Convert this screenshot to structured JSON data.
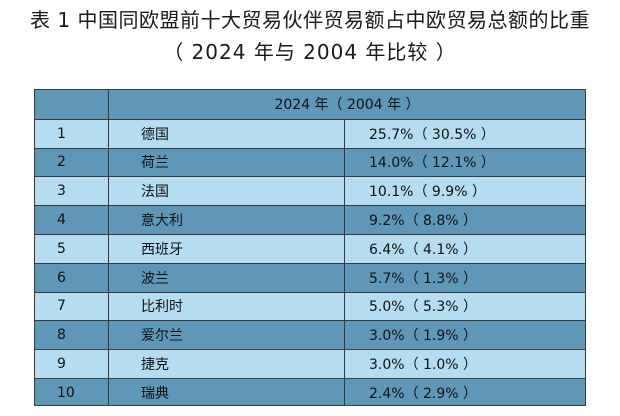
{
  "title": "表 1 中国同欧盟前十大贸易伙伴贸易额占中欧贸易总额的比重",
  "subtitle": "（ 2024 年与 2004 年比较 ）",
  "table": {
    "header": "2024 年（ 2004 年 ）",
    "rows": [
      {
        "rank": "1",
        "country": "德国",
        "share": "25.7%（ 30.5% ）"
      },
      {
        "rank": "2",
        "country": "荷兰",
        "share": "14.0%（ 12.1% ）"
      },
      {
        "rank": "3",
        "country": "法国",
        "share": "10.1%（ 9.9% ）"
      },
      {
        "rank": "4",
        "country": "意大利",
        "share": "9.2%（ 8.8% ）"
      },
      {
        "rank": "5",
        "country": "西班牙",
        "share": "6.4%（ 4.1% ）"
      },
      {
        "rank": "6",
        "country": "波兰",
        "share": "5.7%（ 1.3% ）"
      },
      {
        "rank": "7",
        "country": "比利时",
        "share": "5.0%（ 5.3% ）"
      },
      {
        "rank": "8",
        "country": "爱尔兰",
        "share": "3.0%（ 1.9% ）"
      },
      {
        "rank": "9",
        "country": "捷克",
        "share": "3.0%（ 1.0% ）"
      },
      {
        "rank": "10",
        "country": "瑞典",
        "share": "2.4%（ 2.9% ）"
      }
    ]
  },
  "colors": {
    "dark_row": "#5f97b9",
    "light_row": "#b5dcef",
    "border": "#3a3a3a"
  }
}
